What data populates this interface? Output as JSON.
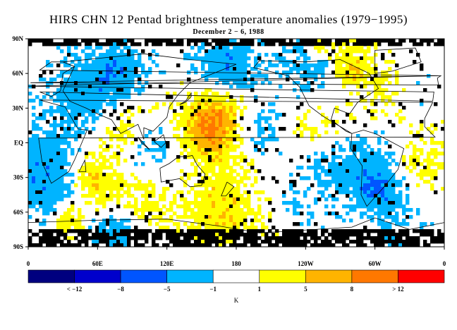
{
  "title": "HIRS CHN 12 Pentad brightness temperature anomalies (1979−1995)",
  "subtitle": "December 2 − 6, 1988",
  "lat_labels": [
    "90N",
    "60N",
    "30N",
    "EQ",
    "30S",
    "60S",
    "90S"
  ],
  "lon_labels": [
    "0",
    "60E",
    "120E",
    "180",
    "120W",
    "60W",
    "0"
  ],
  "legend": {
    "colors": [
      "#00007f",
      "#0000cc",
      "#0055ff",
      "#00b4ff",
      "#ffffff",
      "#ffff00",
      "#ffb400",
      "#ff7800",
      "#ff0000"
    ],
    "labels": [
      "< −12",
      "−8",
      "−5",
      "−1",
      "1",
      "5",
      "8",
      "> 12"
    ],
    "unit": "K"
  },
  "map": {
    "missing_color": "#000000",
    "land_outline_color": "#000000"
  }
}
